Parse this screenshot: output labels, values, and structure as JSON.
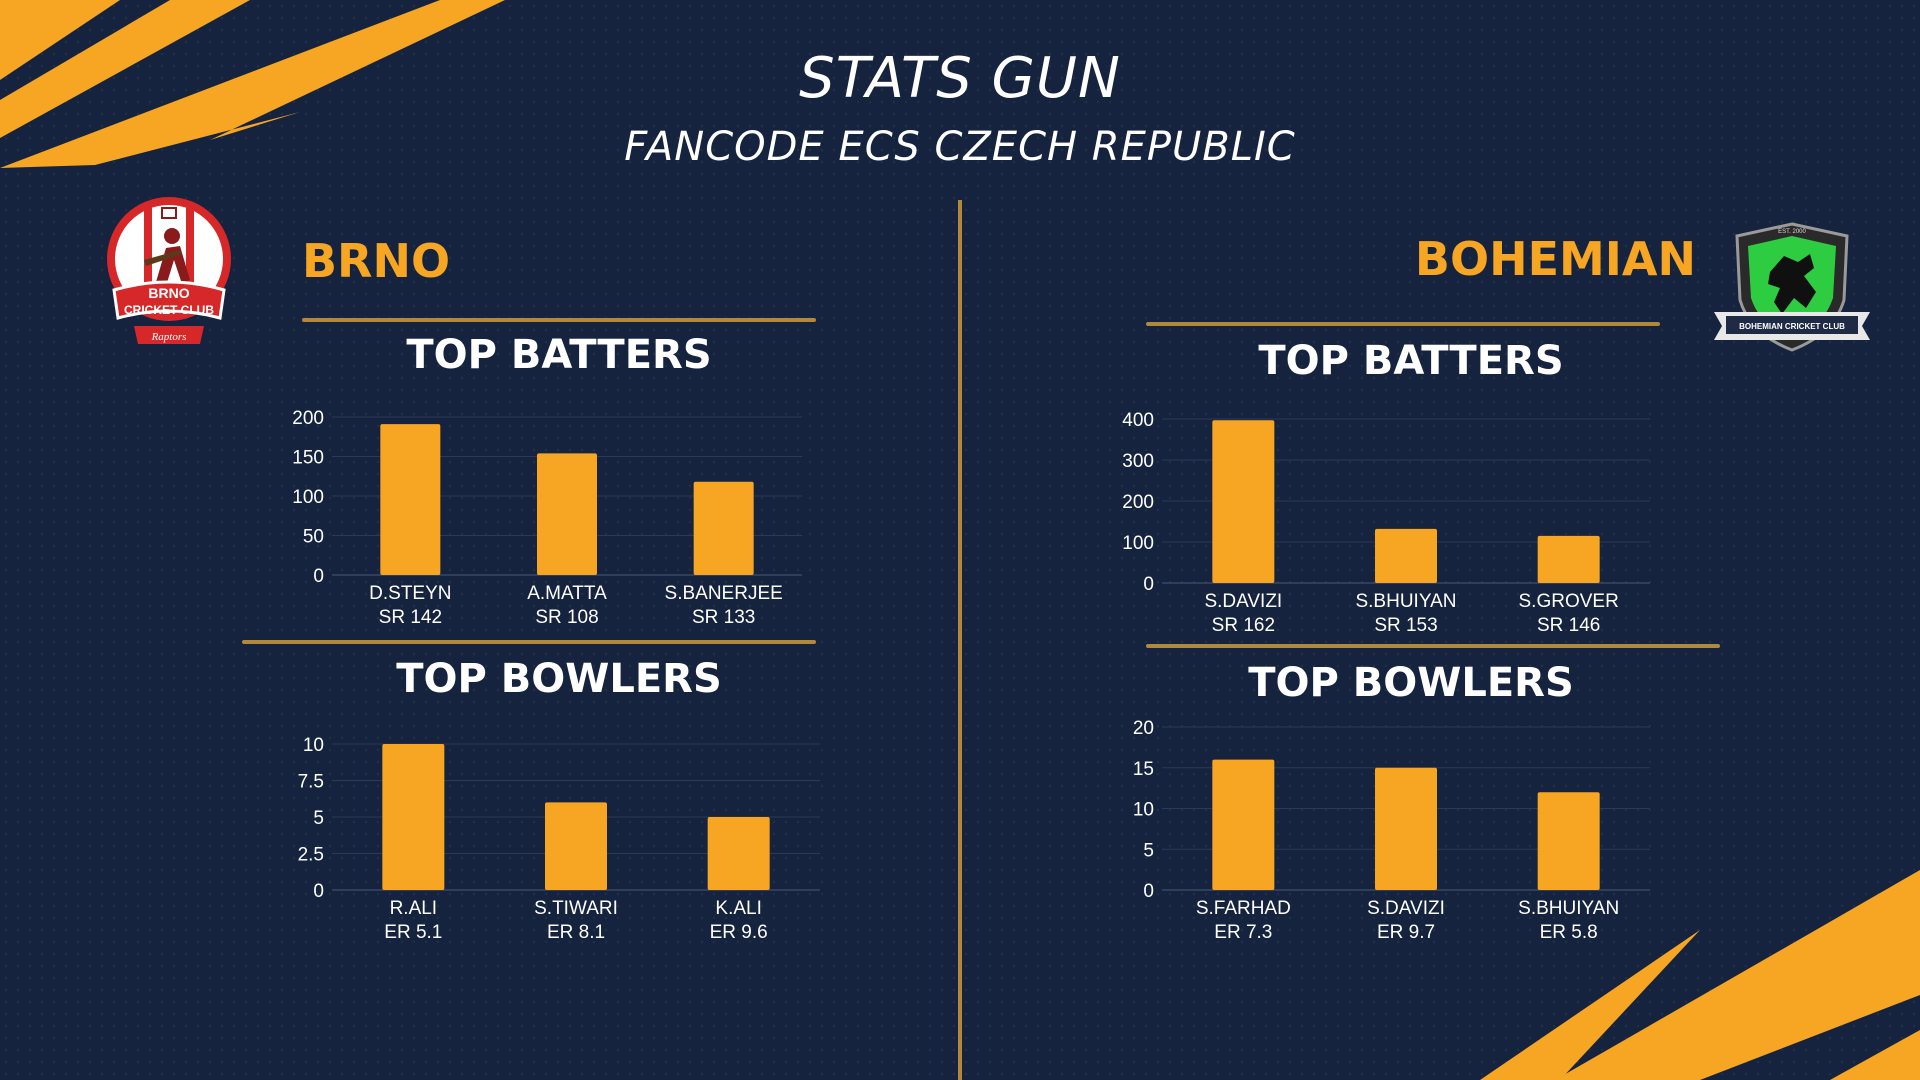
{
  "header": {
    "title": "STATS GUN",
    "subtitle": "FANCODE ECS CZECH REPUBLIC"
  },
  "teams": {
    "left": {
      "name": "BRNO",
      "logo": {
        "text_top": "BRNO",
        "text_mid": "CRICKET CLUB",
        "text_ribbon": "Raptors"
      }
    },
    "right": {
      "name": "BOHEMIAN",
      "logo": {
        "text_top": "EST. 2000",
        "text_ribbon": "BOHEMIAN CRICKET CLUB"
      }
    }
  },
  "colors": {
    "bar": "#f6a623",
    "background": "#15233e",
    "accent": "#f6a623",
    "rule": "#b08a3a"
  },
  "chart_data": [
    {
      "team": "BRNO",
      "title": "TOP BATTERS",
      "type": "bar",
      "categories": [
        "D.STEYN",
        "A.MATTA",
        "S.BANERJEE"
      ],
      "sublabels": [
        "SR 142",
        "SR 108",
        "SR 133"
      ],
      "values": [
        191,
        154,
        118
      ],
      "yticks": [
        "0",
        "50",
        "100",
        "150",
        "200"
      ],
      "ylim": [
        0,
        200
      ],
      "grid": true
    },
    {
      "team": "BRNO",
      "title": "TOP BOWLERS",
      "type": "bar",
      "categories": [
        "R.ALI",
        "S.TIWARI",
        "K.ALI"
      ],
      "sublabels": [
        "ER 5.1",
        "ER 8.1",
        "ER 9.6"
      ],
      "values": [
        10,
        6,
        5
      ],
      "yticks": [
        "0",
        "2.5",
        "5",
        "7.5",
        "10"
      ],
      "ylim": [
        0,
        10
      ],
      "grid": true
    },
    {
      "team": "BOHEMIAN",
      "title": "TOP BATTERS",
      "type": "bar",
      "categories": [
        "S.DAVIZI",
        "S.BHUIYAN",
        "S.GROVER"
      ],
      "sublabels": [
        "SR 162",
        "SR 153",
        "SR 146"
      ],
      "values": [
        397,
        132,
        115
      ],
      "yticks": [
        "0",
        "100",
        "200",
        "300",
        "400"
      ],
      "ylim": [
        0,
        400
      ],
      "grid": true
    },
    {
      "team": "BOHEMIAN",
      "title": "TOP BOWLERS",
      "type": "bar",
      "categories": [
        "S.FARHAD",
        "S.DAVIZI",
        "S.BHUIYAN"
      ],
      "sublabels": [
        "ER 7.3",
        "ER 9.7",
        "ER 5.8"
      ],
      "values": [
        16,
        15,
        12
      ],
      "yticks": [
        "0",
        "5",
        "10",
        "15",
        "20"
      ],
      "ylim": [
        0,
        20
      ],
      "grid": true
    }
  ]
}
